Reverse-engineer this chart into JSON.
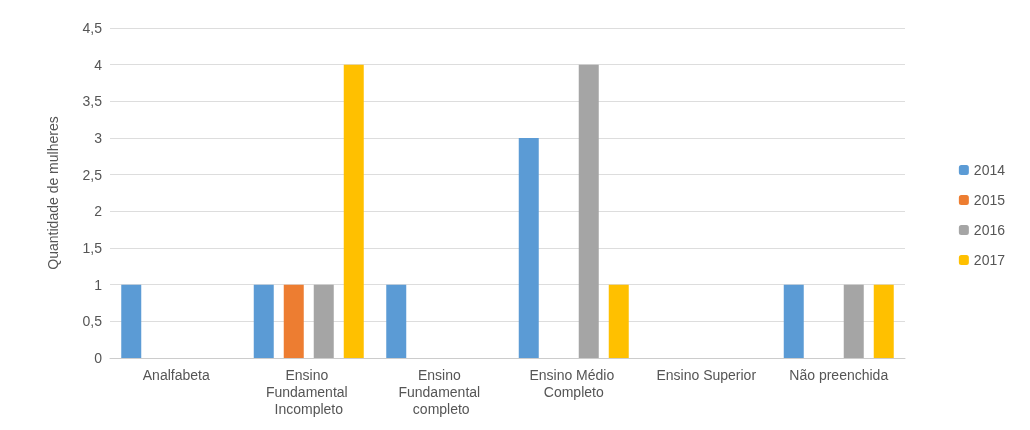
{
  "chart_data": {
    "type": "bar",
    "ylabel": "Quantidade de mulheres",
    "categories": [
      "Analfabeta",
      "Ensino Fundamental Incompleto",
      "Ensino Fundamental completo",
      "Ensino Médio Completo",
      "Ensino Superior",
      "Não preenchida"
    ],
    "series": [
      {
        "name": "2014",
        "color": "#5b9bd5",
        "values": [
          1,
          1,
          1,
          3,
          0,
          1
        ]
      },
      {
        "name": "2015",
        "color": "#ed7d31",
        "values": [
          0,
          1,
          0,
          0,
          0,
          0
        ]
      },
      {
        "name": "2016",
        "color": "#a5a5a5",
        "values": [
          0,
          1,
          0,
          4,
          0,
          1
        ]
      },
      {
        "name": "2017",
        "color": "#ffc000",
        "values": [
          0,
          4,
          0,
          1,
          0,
          1
        ]
      }
    ],
    "ylim": [
      0,
      4.5
    ],
    "yticks": [
      0,
      {
        "value": 0.5,
        "label": "0,5"
      },
      1,
      {
        "value": 1.5,
        "label": "1,5"
      },
      2,
      {
        "value": 2.5,
        "label": "2,5"
      },
      3,
      {
        "value": 3.5,
        "label": "3,5"
      },
      4,
      {
        "value": 4.5,
        "label": "4,5"
      }
    ],
    "grid": "y",
    "legend": "right"
  }
}
